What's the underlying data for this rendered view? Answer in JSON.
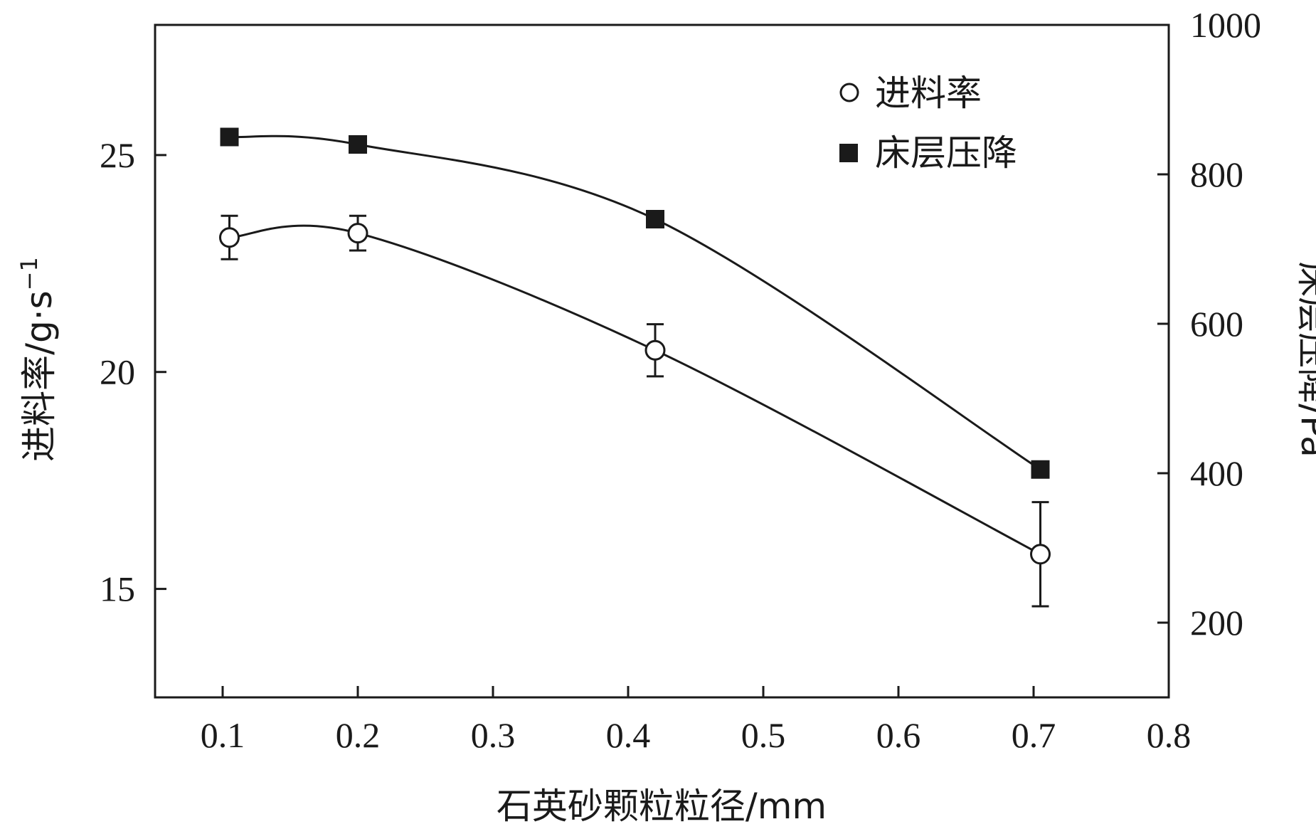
{
  "chart_data": {
    "type": "line",
    "xlabel": "石英砂颗粒粒径/mm",
    "ylabel_left": "进料率/g·s",
    "ylabel_left_sup": "−1",
    "ylabel_right": "床层压降/Pa",
    "xlim": [
      0.05,
      0.8
    ],
    "ylim_left": [
      12.5,
      28
    ],
    "ylim_right": [
      100,
      1000
    ],
    "x_ticks": [
      "0.1",
      "0.2",
      "0.3",
      "0.4",
      "0.5",
      "0.6",
      "0.7",
      "0.8"
    ],
    "y_left_ticks": [
      "15",
      "20",
      "25"
    ],
    "y_right_ticks": [
      "200",
      "400",
      "600",
      "800",
      "1000"
    ],
    "grid": false,
    "legend_position": "top-right",
    "series": [
      {
        "name": "进料率",
        "axis": "left",
        "marker": "open-circle",
        "x": [
          0.105,
          0.2,
          0.42,
          0.705
        ],
        "y": [
          23.1,
          23.2,
          20.5,
          15.8
        ],
        "error": [
          0.5,
          0.4,
          0.6,
          1.2
        ]
      },
      {
        "name": "床层压降",
        "axis": "right",
        "marker": "filled-square",
        "x": [
          0.105,
          0.2,
          0.42,
          0.705
        ],
        "y": [
          850,
          840,
          740,
          405
        ]
      }
    ]
  }
}
